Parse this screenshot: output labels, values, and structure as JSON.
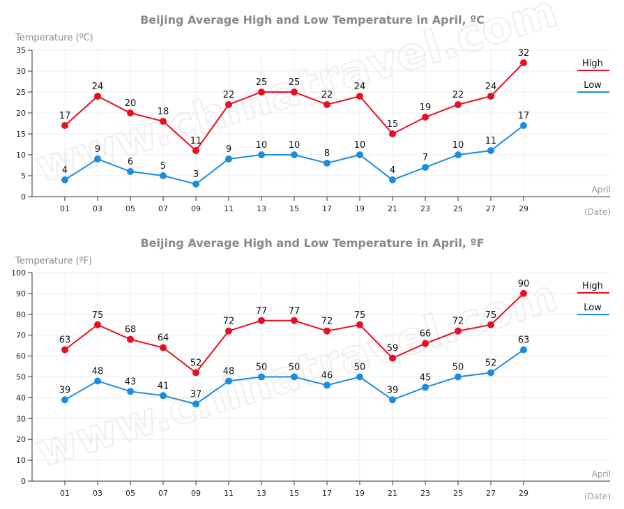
{
  "chart_data": [
    {
      "type": "line",
      "title": "Beijing Average High and Low Temperature in April, ºC",
      "ylabel": "Temperature (ºC)",
      "xlabel": "(Date)",
      "xnote": "April",
      "categories": [
        "01",
        "03",
        "05",
        "07",
        "09",
        "11",
        "13",
        "15",
        "17",
        "19",
        "21",
        "23",
        "25",
        "27",
        "29"
      ],
      "ylim": [
        0,
        35
      ],
      "yticks": [
        0,
        5,
        10,
        15,
        20,
        25,
        30,
        35
      ],
      "grid": true,
      "legend_position": "top-right",
      "series": [
        {
          "name": "High",
          "color": "#e8101e",
          "values": [
            17,
            24,
            20,
            18,
            11,
            22,
            25,
            25,
            22,
            24,
            15,
            19,
            22,
            24,
            32
          ]
        },
        {
          "name": "Low",
          "color": "#1a8de3",
          "values": [
            4,
            9,
            6,
            5,
            3,
            9,
            10,
            10,
            8,
            10,
            4,
            7,
            10,
            11,
            17
          ]
        }
      ]
    },
    {
      "type": "line",
      "title": "Beijing Average High and Low Temperature in April, ºF",
      "ylabel": "Temperature (ºF)",
      "xlabel": "(Date)",
      "xnote": "April",
      "categories": [
        "01",
        "03",
        "05",
        "07",
        "09",
        "11",
        "13",
        "15",
        "17",
        "19",
        "21",
        "23",
        "25",
        "27",
        "29"
      ],
      "ylim": [
        0,
        100
      ],
      "yticks": [
        0,
        10,
        20,
        30,
        40,
        50,
        60,
        70,
        80,
        90,
        100
      ],
      "grid": true,
      "legend_position": "top-right",
      "series": [
        {
          "name": "High",
          "color": "#e8101e",
          "values": [
            63,
            75,
            68,
            64,
            52,
            72,
            77,
            77,
            72,
            75,
            59,
            66,
            72,
            75,
            90
          ]
        },
        {
          "name": "Low",
          "color": "#1a8de3",
          "values": [
            39,
            48,
            43,
            41,
            37,
            48,
            50,
            50,
            46,
            50,
            39,
            45,
            50,
            52,
            63
          ]
        }
      ]
    }
  ]
}
